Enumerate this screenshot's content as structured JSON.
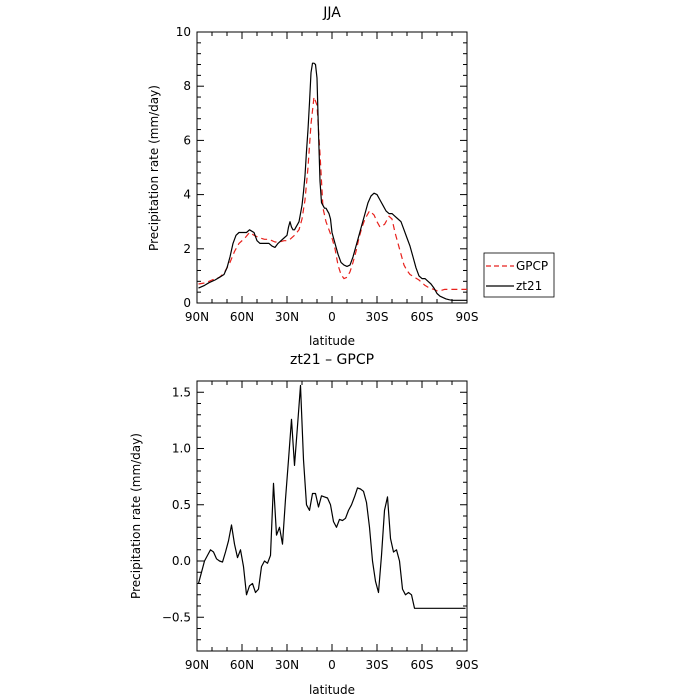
{
  "chart_data": [
    {
      "type": "line",
      "title": "JJA",
      "xlabel": "latitude",
      "ylabel": "Precipitation rate (mm/day)",
      "xlim": [
        90,
        -90
      ],
      "ylim": [
        0,
        10
      ],
      "x_ticks": [
        90,
        60,
        30,
        0,
        -30,
        -60,
        -90
      ],
      "x_tick_labels": [
        "90N",
        "60N",
        "30N",
        "0",
        "30S",
        "60S",
        "90S"
      ],
      "y_ticks": [
        0,
        2,
        4,
        6,
        8,
        10
      ],
      "y_tick_labels": [
        "0",
        "2",
        "4",
        "6",
        "8",
        "10"
      ],
      "grid": false,
      "legend": {
        "placement": "right",
        "entries": [
          "GPCP",
          "zt21"
        ]
      },
      "series": [
        {
          "name": "GPCP",
          "color": "#e8221d",
          "dash": "dashed",
          "x": [
            89,
            84,
            80,
            75,
            72,
            68,
            65,
            62,
            58,
            55,
            52,
            48,
            45,
            42,
            38,
            35,
            32,
            30,
            28,
            25,
            22,
            20,
            18,
            16,
            14,
            12,
            10,
            8,
            6,
            4,
            2,
            0,
            -2,
            -4,
            -6,
            -8,
            -10,
            -12,
            -14,
            -16,
            -18,
            -20,
            -22,
            -25,
            -28,
            -30,
            -32,
            -35,
            -38,
            -40,
            -42,
            -45,
            -48,
            -50,
            -52,
            -55,
            -58,
            -60,
            -62,
            -65,
            -68,
            -70,
            -72,
            -75,
            -78,
            -80,
            -82,
            -85,
            -88,
            -90
          ],
          "y": [
            0.7,
            0.75,
            0.85,
            0.95,
            1.1,
            1.5,
            1.9,
            2.2,
            2.4,
            2.6,
            2.5,
            2.4,
            2.35,
            2.35,
            2.25,
            2.25,
            2.3,
            2.3,
            2.35,
            2.5,
            2.7,
            3.1,
            3.8,
            5.0,
            6.6,
            7.6,
            7.3,
            5.5,
            3.5,
            3.0,
            2.7,
            2.4,
            2.0,
            1.4,
            1.05,
            0.9,
            0.95,
            1.15,
            1.5,
            1.9,
            2.4,
            2.8,
            3.1,
            3.4,
            3.25,
            3.0,
            2.8,
            2.9,
            3.2,
            3.1,
            2.6,
            2.0,
            1.4,
            1.2,
            1.05,
            0.95,
            0.85,
            0.75,
            0.65,
            0.55,
            0.5,
            0.45,
            0.45,
            0.5,
            0.5,
            0.5,
            0.5,
            0.5,
            0.5,
            0.5
          ]
        },
        {
          "name": "zt21",
          "color": "#000000",
          "dash": "solid",
          "x": [
            89,
            85,
            82,
            78,
            75,
            72,
            70,
            68,
            66,
            64,
            62,
            60,
            57,
            55,
            52,
            50,
            48,
            46,
            44,
            42,
            40,
            38,
            36,
            34,
            32,
            30,
            29,
            28,
            27,
            26,
            25,
            24,
            23,
            22,
            21,
            20,
            19,
            18,
            17,
            16,
            15,
            14,
            13,
            12,
            11,
            10,
            9,
            8,
            7,
            6,
            5,
            4,
            3,
            2,
            1,
            0,
            -2,
            -4,
            -6,
            -8,
            -10,
            -12,
            -14,
            -16,
            -18,
            -20,
            -22,
            -24,
            -26,
            -28,
            -30,
            -32,
            -34,
            -36,
            -38,
            -40,
            -42,
            -44,
            -46,
            -48,
            -50,
            -52,
            -54,
            -56,
            -58,
            -60,
            -62,
            -64,
            -66,
            -68,
            -70,
            -72,
            -74,
            -76,
            -78,
            -80,
            -82,
            -84,
            -86,
            -88,
            -90
          ],
          "y": [
            0.55,
            0.65,
            0.75,
            0.85,
            0.95,
            1.05,
            1.3,
            1.7,
            2.2,
            2.5,
            2.6,
            2.6,
            2.6,
            2.7,
            2.6,
            2.3,
            2.2,
            2.2,
            2.2,
            2.2,
            2.1,
            2.05,
            2.2,
            2.3,
            2.4,
            2.5,
            2.8,
            3.0,
            2.8,
            2.7,
            2.7,
            2.8,
            2.9,
            3.0,
            3.3,
            3.6,
            4.1,
            4.7,
            5.6,
            6.4,
            7.4,
            8.5,
            8.85,
            8.85,
            8.8,
            8.3,
            6.3,
            4.5,
            3.7,
            3.6,
            3.5,
            3.5,
            3.4,
            3.3,
            3.1,
            2.6,
            2.2,
            1.8,
            1.5,
            1.4,
            1.35,
            1.4,
            1.7,
            2.1,
            2.5,
            2.9,
            3.3,
            3.7,
            3.95,
            4.05,
            4.0,
            3.8,
            3.6,
            3.4,
            3.3,
            3.3,
            3.2,
            3.1,
            3.0,
            2.7,
            2.4,
            2.1,
            1.7,
            1.3,
            1.0,
            0.9,
            0.9,
            0.8,
            0.7,
            0.55,
            0.35,
            0.25,
            0.2,
            0.15,
            0.12,
            0.1,
            0.1,
            0.1,
            0.1,
            0.1,
            0.1
          ]
        }
      ]
    },
    {
      "type": "line",
      "title": "zt21 – GPCP",
      "xlabel": "latitude",
      "ylabel": "Precipitation rate (mm/day)",
      "xlim": [
        90,
        -90
      ],
      "ylim": [
        -0.8,
        1.6
      ],
      "x_ticks": [
        90,
        60,
        30,
        0,
        -30,
        -60,
        -90
      ],
      "x_tick_labels": [
        "90N",
        "60N",
        "30N",
        "0",
        "30S",
        "60S",
        "90S"
      ],
      "y_ticks": [
        -0.5,
        0,
        0.5,
        1,
        1.5
      ],
      "y_tick_labels": [
        "−0.5",
        "0.0",
        "0.5",
        "1.0",
        "1.5"
      ],
      "grid": false,
      "series": [
        {
          "color": "#000000",
          "dash": "solid",
          "x": [
            89,
            87,
            85,
            83,
            81,
            79,
            77,
            75,
            73,
            71,
            69,
            67,
            65,
            63,
            61,
            59,
            57,
            55,
            53,
            51,
            49,
            47,
            45,
            43,
            41,
            39,
            37,
            35,
            33,
            31,
            29,
            27,
            25,
            23,
            21,
            19,
            17,
            15,
            13,
            11,
            9,
            7,
            5,
            3,
            1,
            -1,
            -3,
            -5,
            -7,
            -9,
            -11,
            -13,
            -15,
            -17,
            -19,
            -21,
            -23,
            -25,
            -27,
            -29,
            -31,
            -33,
            -35,
            -37,
            -39,
            -41,
            -43,
            -45,
            -47,
            -49,
            -51,
            -53,
            -55,
            -57,
            -59,
            -61,
            -63,
            -65,
            -67,
            -69,
            -71,
            -73,
            -75,
            -77,
            -79,
            -81,
            -83,
            -85,
            -87,
            -89
          ],
          "y": [
            -0.2,
            -0.1,
            0.0,
            0.05,
            0.1,
            0.08,
            0.02,
            0.0,
            -0.01,
            0.08,
            0.18,
            0.32,
            0.15,
            0.03,
            0.1,
            -0.05,
            -0.3,
            -0.22,
            -0.2,
            -0.28,
            -0.25,
            -0.05,
            0.0,
            -0.02,
            0.05,
            0.69,
            0.23,
            0.3,
            0.15,
            0.55,
            0.9,
            1.26,
            0.85,
            1.2,
            1.56,
            0.9,
            0.5,
            0.45,
            0.6,
            0.6,
            0.48,
            0.58,
            0.57,
            0.56,
            0.5,
            0.35,
            0.3,
            0.37,
            0.36,
            0.38,
            0.45,
            0.5,
            0.57,
            0.65,
            0.64,
            0.62,
            0.52,
            0.3,
            0.0,
            -0.18,
            -0.28,
            0.05,
            0.45,
            0.57,
            0.2,
            0.08,
            0.1,
            0.0,
            -0.25,
            -0.3,
            -0.28,
            -0.3,
            -0.42,
            -0.42,
            -0.42,
            -0.42,
            -0.42,
            -0.42,
            -0.42,
            -0.42,
            -0.42,
            -0.42,
            -0.42,
            -0.42,
            -0.42,
            -0.42,
            -0.42,
            -0.42,
            -0.42,
            -0.42
          ]
        }
      ]
    }
  ]
}
